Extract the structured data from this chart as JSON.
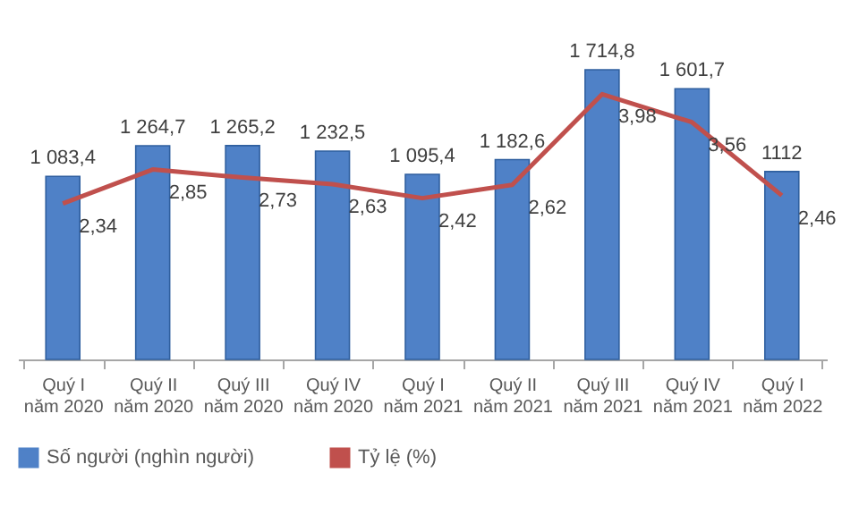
{
  "chart_data": {
    "type": "bar",
    "categories": [
      "Quý I năm 2020",
      "Quý II năm 2020",
      "Quý III năm 2020",
      "Quý IV năm 2020",
      "Quý I năm 2021",
      "Quý II năm 2021",
      "Quý III năm 2021",
      "Quý IV năm 2021",
      "Quý I năm 2022"
    ],
    "series": [
      {
        "name": "Số người (nghìn người)",
        "color": "#4f81c7",
        "values": [
          1083.4,
          1264.7,
          1265.2,
          1232.5,
          1095.4,
          1182.6,
          1714.8,
          1601.7,
          1112
        ],
        "value_labels": [
          "1 083,4",
          "1 264,7",
          "1 265,2",
          "1 232,5",
          "1 095,4",
          "1 182,6",
          "1 714,8",
          "1 601,7",
          "1112"
        ]
      },
      {
        "name": "Tỷ lệ (%)",
        "type": "line",
        "axis": "y2",
        "color": "#c0504d",
        "values": [
          2.34,
          2.85,
          2.73,
          2.63,
          2.42,
          2.62,
          3.98,
          3.56,
          2.46
        ],
        "value_labels": [
          "2,34",
          "2,85",
          "2,73",
          "2,63",
          "2,42",
          "2,62",
          "3,98",
          "3,56",
          "2,46"
        ]
      }
    ],
    "legend": "bottom",
    "marker": "none"
  }
}
